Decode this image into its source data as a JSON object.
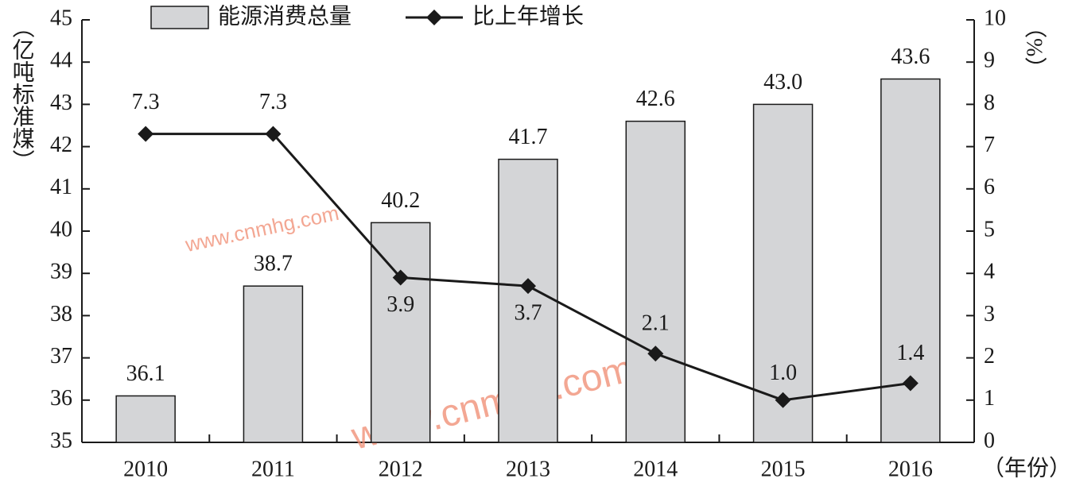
{
  "chart_data": {
    "type": "bar-line",
    "ylabel": "（亿吨标准煤）",
    "y2label": "（%）",
    "xlabel": "（年份）",
    "categories": [
      "2010",
      "2011",
      "2012",
      "2013",
      "2014",
      "2015",
      "2016"
    ],
    "series": [
      {
        "name": "能源消费总量",
        "type": "bar",
        "color": "#d4d5d7",
        "values": [
          36.1,
          38.7,
          40.2,
          41.7,
          42.6,
          43.0,
          43.6
        ],
        "value_labels": [
          "36.1",
          "38.7",
          "40.2",
          "41.7",
          "42.6",
          "43.0",
          "43.6"
        ]
      },
      {
        "name": "比上年增长",
        "type": "line",
        "axis": "y2",
        "color": "#1a1a1a",
        "values": [
          7.3,
          7.3,
          3.9,
          3.7,
          2.1,
          1.0,
          1.4
        ],
        "value_labels": [
          "7.3",
          "7.3",
          "3.9",
          "3.7",
          "2.1",
          "1.0",
          "1.4"
        ]
      }
    ],
    "ylim": [
      35,
      45
    ],
    "yticks": [
      35,
      36,
      37,
      38,
      39,
      40,
      41,
      42,
      43,
      44,
      45
    ],
    "y2lim": [
      0,
      10
    ],
    "y2ticks": [
      0,
      1,
      2,
      3,
      4,
      5,
      6,
      7,
      8,
      9,
      10
    ],
    "grid": false,
    "legend": "top",
    "watermarks": [
      "www.cnmhg.com",
      "www.cnmhg.com"
    ]
  }
}
